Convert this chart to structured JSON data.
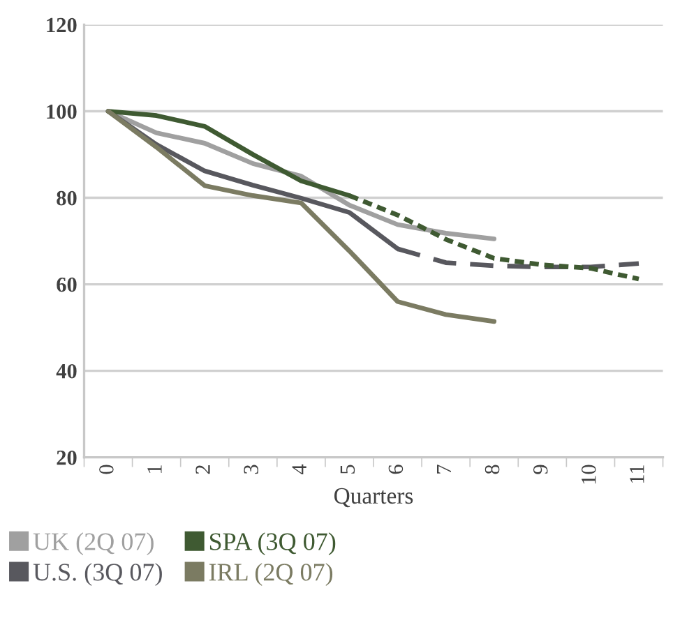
{
  "chart_data": {
    "type": "line",
    "xlabel": "Quarters",
    "categories": [
      "0",
      "1",
      "2",
      "3",
      "4",
      "5",
      "6",
      "7",
      "8",
      "9",
      "10",
      "11"
    ],
    "series": [
      {
        "name": "UK (2Q 07)",
        "color": "#a0a0a0",
        "line_style": "solid",
        "values": [
          100,
          95,
          92.6,
          87.9,
          85,
          78.3,
          73.8,
          71.8,
          70.5,
          null,
          null,
          null
        ]
      },
      {
        "name": "U.S. (3Q 07)",
        "color": "#58585e",
        "line_style": "solid",
        "values": [
          100,
          92.3,
          86.2,
          82.9,
          79.9,
          76.6,
          68.2,
          null,
          null,
          null,
          null,
          null
        ]
      },
      {
        "color": "#58585e",
        "line_style": "dashed",
        "values": [
          null,
          null,
          null,
          null,
          null,
          null,
          68.2,
          65,
          64.3,
          64,
          64,
          64.8
        ]
      },
      {
        "name": "SPA (3Q 07)",
        "color": "#3f5a32",
        "line_style": "solid",
        "values": [
          100,
          99,
          96.5,
          90,
          83.9,
          80.5,
          null,
          null,
          null,
          null,
          null,
          null
        ]
      },
      {
        "color": "#3f5a32",
        "line_style": "dotted",
        "values": [
          null,
          null,
          null,
          null,
          null,
          80.5,
          76,
          70.4,
          66,
          64.5,
          63.7,
          61.2
        ]
      },
      {
        "name": "IRL (2Q 07)",
        "color": "#7b7b62",
        "line_style": "solid",
        "values": [
          100,
          91.7,
          82.8,
          80.5,
          78.8,
          67.7,
          56,
          53,
          51.4,
          null,
          null,
          null
        ]
      }
    ],
    "ylim": [
      20,
      120
    ],
    "yticks": [
      20,
      40,
      60,
      80,
      100,
      120
    ],
    "grid": "y",
    "legend": "bottom",
    "marker": "none"
  }
}
